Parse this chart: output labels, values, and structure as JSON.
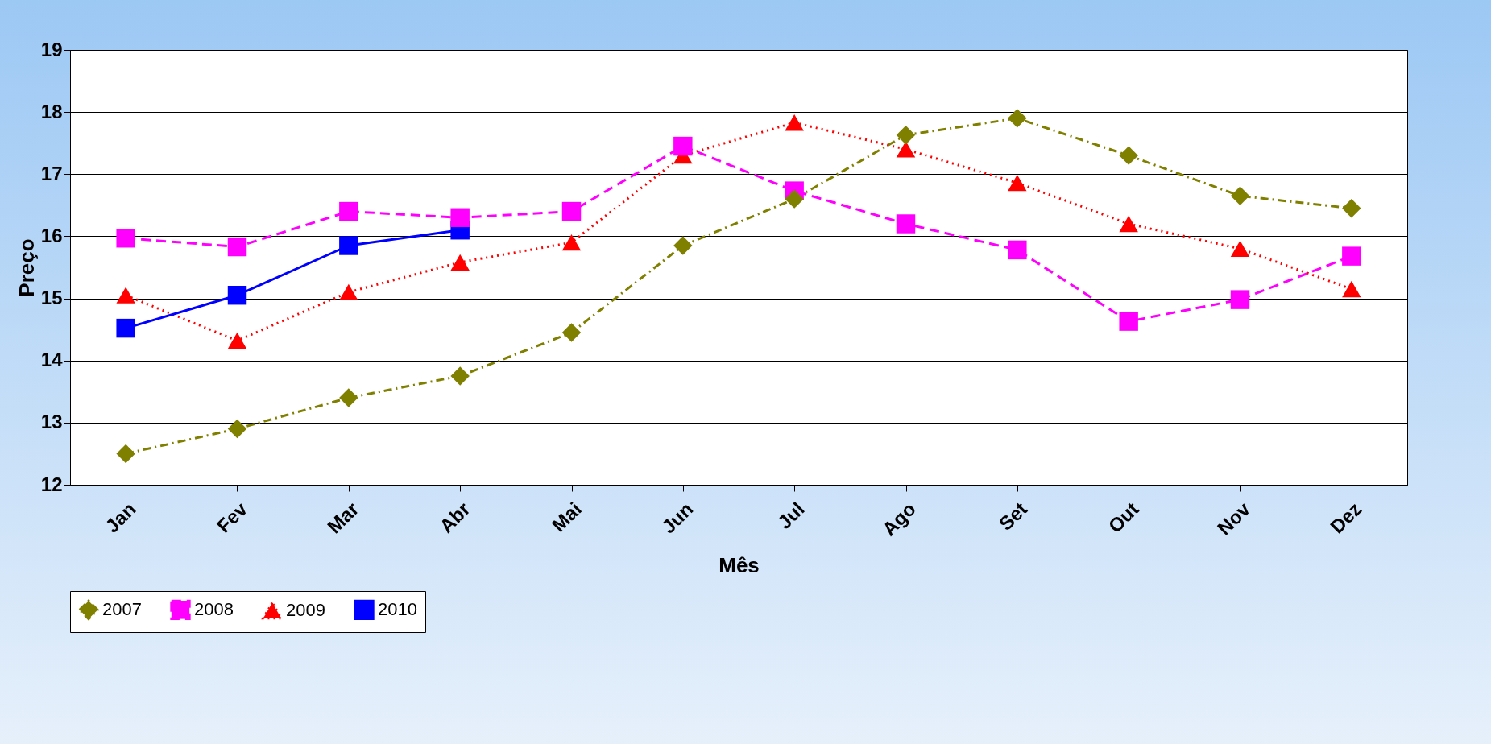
{
  "chart_data": {
    "type": "line",
    "xlabel": "Mês",
    "ylabel": "Preço",
    "categories": [
      "Jan",
      "Fev",
      "Mar",
      "Abr",
      "Mai",
      "Jun",
      "Jul",
      "Ago",
      "Set",
      "Out",
      "Nov",
      "Dez"
    ],
    "ylim": [
      12,
      19
    ],
    "yticks": [
      12,
      13,
      14,
      15,
      16,
      17,
      18,
      19
    ],
    "grid": "y",
    "legend": "bottom",
    "series": [
      {
        "name": "2007",
        "color": "#808000",
        "marker": "diamond",
        "line_style": "dashdot",
        "values": [
          12.5,
          12.9,
          13.4,
          13.75,
          14.45,
          15.85,
          16.6,
          17.63,
          17.9,
          17.3,
          16.65,
          16.45
        ]
      },
      {
        "name": "2008",
        "color": "#ff00ff",
        "marker": "square",
        "line_style": "dashed",
        "values": [
          15.97,
          15.83,
          16.4,
          16.3,
          16.4,
          17.45,
          16.73,
          16.2,
          15.78,
          14.63,
          14.98,
          15.68
        ]
      },
      {
        "name": "2009",
        "color": "#ff0000",
        "marker": "triangle",
        "line_style": "dotted",
        "values": [
          15.05,
          14.32,
          15.1,
          15.58,
          15.9,
          17.3,
          17.83,
          17.4,
          16.86,
          16.2,
          15.8,
          15.15
        ]
      },
      {
        "name": "2010",
        "color": "#0000ff",
        "marker": "square",
        "line_style": "solid",
        "values": [
          14.52,
          15.05,
          15.85,
          16.1,
          null,
          null,
          null,
          null,
          null,
          null,
          null,
          null
        ]
      }
    ]
  }
}
